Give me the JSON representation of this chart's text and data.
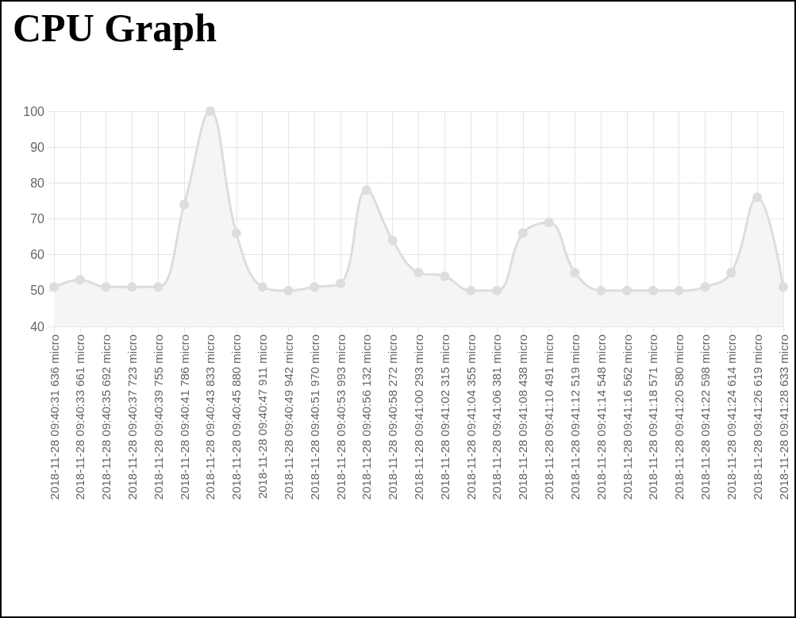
{
  "chart_data": {
    "type": "area",
    "title": "CPU Graph",
    "categories": [
      "2018-11-28 09:40:31 636 micro",
      "2018-11-28 09:40:33 661 micro",
      "2018-11-28 09:40:35 692 micro",
      "2018-11-28 09:40:37 723 micro",
      "2018-11-28 09:40:39 755 micro",
      "2018-11-28 09:40:41 786 micro",
      "2018-11-28 09:40:43 833 micro",
      "2018-11-28 09:40:45 880 micro",
      "2018-11-28 09:40:47 911 micro",
      "2018-11-28 09:40:49 942 micro",
      "2018-11-28 09:40:51 970 micro",
      "2018-11-28 09:40:53 993 micro",
      "2018-11-28 09:40:56 132 micro",
      "2018-11-28 09:40:58 272 micro",
      "2018-11-28 09:41:00 293 micro",
      "2018-11-28 09:41:02 315 micro",
      "2018-11-28 09:41:04 355 micro",
      "2018-11-28 09:41:06 381 micro",
      "2018-11-28 09:41:08 438 micro",
      "2018-11-28 09:41:10 491 micro",
      "2018-11-28 09:41:12 519 micro",
      "2018-11-28 09:41:14 548 micro",
      "2018-11-28 09:41:16 562 micro",
      "2018-11-28 09:41:18 571 micro",
      "2018-11-28 09:41:20 580 micro",
      "2018-11-28 09:41:22 598 micro",
      "2018-11-28 09:41:24 614 micro",
      "2018-11-28 09:41:26 619 micro",
      "2018-11-28 09:41:28 633 micro"
    ],
    "series": [
      {
        "color": "#dddddd",
        "values": [
          51,
          53,
          51,
          51,
          51,
          74,
          100,
          66,
          51,
          50,
          51,
          52,
          78,
          64,
          55,
          54,
          50,
          50,
          66,
          69,
          55,
          50,
          50,
          50,
          50,
          51,
          55,
          76,
          51
        ]
      }
    ],
    "ylim": [
      40,
      100
    ],
    "yticks": [
      40,
      50,
      60,
      70,
      80,
      90,
      100
    ],
    "grid": true,
    "marker": "circle",
    "line_style": "solid"
  }
}
